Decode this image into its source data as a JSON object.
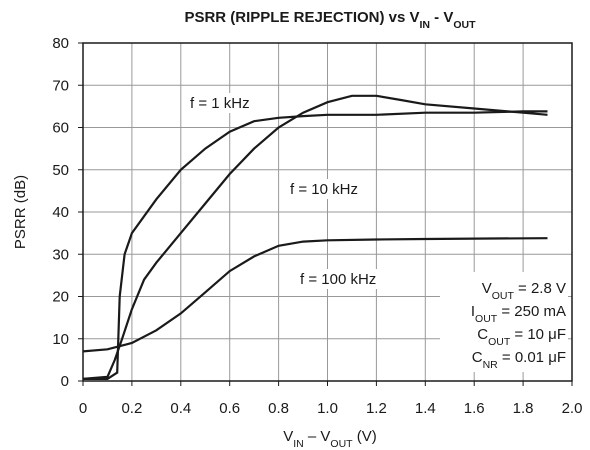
{
  "chart_data": {
    "type": "line",
    "title": [
      "PSRR (RIPPLE REJECTION) vs V",
      "IN",
      " - V",
      "OUT"
    ],
    "xlabel": [
      "V",
      "IN",
      " – V",
      "OUT",
      " (V)"
    ],
    "ylabel": "PSRR (dB)",
    "xlim": [
      0,
      2
    ],
    "ylim": [
      0,
      80
    ],
    "xticks": [
      0,
      0.2,
      0.4,
      0.6,
      0.8,
      {
        "value": 1,
        "label": "1.0"
      },
      1.2,
      1.4,
      1.6,
      1.8,
      {
        "value": 2,
        "label": "2.0"
      }
    ],
    "yticks": [
      0,
      10,
      20,
      30,
      40,
      50,
      60,
      70,
      80
    ],
    "grid": true,
    "series": [
      {
        "name": "f = 1 kHz",
        "color": "#1a1a1a",
        "x": [
          0,
          0.1,
          0.14,
          0.15,
          0.17,
          0.2,
          0.3,
          0.4,
          0.5,
          0.6,
          0.7,
          0.8,
          0.9,
          1.0,
          1.2,
          1.4,
          1.6,
          1.8,
          1.9
        ],
        "values": [
          0.5,
          0.5,
          2,
          20,
          30,
          35,
          43,
          50,
          55,
          59,
          61.5,
          62.3,
          62.7,
          63,
          63,
          63.5,
          63.5,
          63.8,
          63.8
        ]
      },
      {
        "name": "f = 10 kHz",
        "color": "#1a1a1a",
        "x": [
          0,
          0.1,
          0.13,
          0.16,
          0.2,
          0.25,
          0.3,
          0.4,
          0.5,
          0.6,
          0.7,
          0.8,
          0.9,
          1.0,
          1.1,
          1.2,
          1.3,
          1.4,
          1.6,
          1.8,
          1.9
        ],
        "values": [
          0.5,
          1,
          5,
          10,
          17,
          24,
          28,
          35,
          42,
          49,
          55,
          60,
          63.5,
          66,
          67.5,
          67.5,
          66.5,
          65.5,
          64.5,
          63.5,
          63
        ]
      },
      {
        "name": "f = 100 kHz",
        "color": "#1a1a1a",
        "x": [
          0,
          0.1,
          0.2,
          0.3,
          0.4,
          0.5,
          0.6,
          0.7,
          0.8,
          0.9,
          1.0,
          1.2,
          1.4,
          1.6,
          1.9
        ],
        "values": [
          7,
          7.5,
          9,
          12,
          16,
          21,
          26,
          29.5,
          32,
          33,
          33.3,
          33.5,
          33.6,
          33.7,
          33.8
        ]
      }
    ],
    "annotations": [
      [
        "V",
        "OUT",
        " = 2.8 V"
      ],
      [
        "I",
        "OUT",
        " = 250 mA"
      ],
      [
        "C",
        "OUT",
        " = 10 μF"
      ],
      [
        "C",
        "NR",
        " = 0.01 μF"
      ]
    ]
  }
}
